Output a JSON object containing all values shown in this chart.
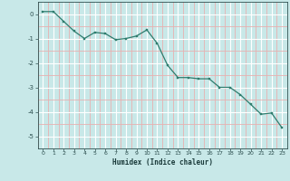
{
  "x": [
    0,
    1,
    2,
    3,
    4,
    5,
    6,
    7,
    8,
    9,
    10,
    11,
    12,
    13,
    14,
    15,
    16,
    17,
    18,
    19,
    20,
    21,
    22,
    23
  ],
  "y": [
    0.1,
    0.1,
    -0.3,
    -0.7,
    -1.0,
    -0.75,
    -0.8,
    -1.05,
    -1.0,
    -0.9,
    -0.65,
    -1.2,
    -2.1,
    -2.6,
    -2.6,
    -2.65,
    -2.65,
    -3.0,
    -3.0,
    -3.3,
    -3.7,
    -4.1,
    -4.05,
    -4.65
  ],
  "xlabel": "Humidex (Indice chaleur)",
  "xlim": [
    -0.5,
    23.5
  ],
  "ylim": [
    -5.5,
    0.5
  ],
  "yticks": [
    0,
    -1,
    -2,
    -3,
    -4,
    -5
  ],
  "xticks": [
    0,
    1,
    2,
    3,
    4,
    5,
    6,
    7,
    8,
    9,
    10,
    11,
    12,
    13,
    14,
    15,
    16,
    17,
    18,
    19,
    20,
    21,
    22,
    23
  ],
  "line_color": "#2e7d6e",
  "marker_color": "#2e7d6e",
  "bg_color": "#c8e8e8",
  "major_grid_color": "#ffffff",
  "minor_grid_color": "#e8b0b0",
  "tick_color": "#2e5050",
  "label_color": "#1a3a3a"
}
